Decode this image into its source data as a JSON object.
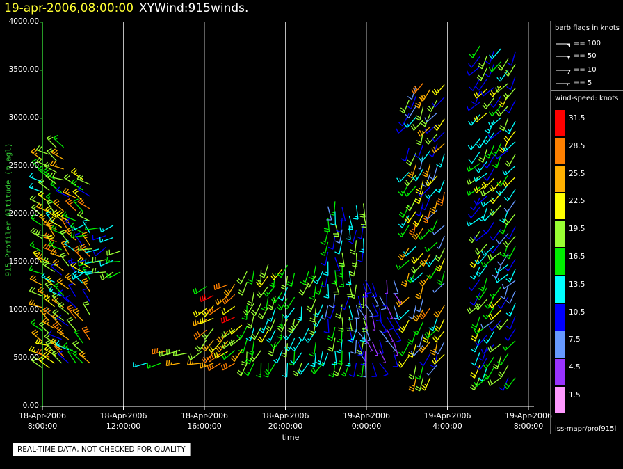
{
  "header": {
    "timestamp": "19-apr-2006,08:00:00",
    "plot_name": "XYWind:915winds."
  },
  "notice": "REAL-TIME DATA, NOT CHECKED FOR QUALITY",
  "legend": {
    "barb_title": "barb flags in knots",
    "barb_flags": [
      {
        "label": "== 100"
      },
      {
        "label": "== 50"
      },
      {
        "label": "== 10"
      },
      {
        "label": "== 5"
      }
    ],
    "speed_title": "wind-speed: knots",
    "speed_bins": [
      {
        "label": "31.5",
        "color": "#ff0000"
      },
      {
        "label": "28.5",
        "color": "#ff8000"
      },
      {
        "label": "25.5",
        "color": "#ffb000"
      },
      {
        "label": "22.5",
        "color": "#ffff00"
      },
      {
        "label": "19.5",
        "color": "#99ff33"
      },
      {
        "label": "16.5",
        "color": "#00ee00"
      },
      {
        "label": "13.5",
        "color": "#00ffff"
      },
      {
        "label": "10.5",
        "color": "#0000ff"
      },
      {
        "label": "7.5",
        "color": "#6699ff"
      },
      {
        "label": "4.5",
        "color": "#9933ff"
      },
      {
        "label": "1.5",
        "color": "#ff99ff"
      }
    ],
    "source": "iss-mapr/prof915l"
  },
  "chart_data": {
    "type": "scatter",
    "subtype": "wind-barb time-height plot",
    "xlabel": "time",
    "ylabel": "915 Profiler Altitude (m agl)",
    "x_range": [
      "2006-04-18 08:00",
      "2006-04-19 08:00"
    ],
    "ylim": [
      0,
      4000
    ],
    "y_ticks": [
      "0.00",
      "500.00",
      "1000.00",
      "1500.00",
      "2000.00",
      "2500.00",
      "3000.00",
      "3500.00",
      "4000.00"
    ],
    "x_ticks": [
      {
        "date": "18-Apr-2006",
        "time": "8:00:00"
      },
      {
        "date": "18-Apr-2006",
        "time": "12:00:00"
      },
      {
        "date": "18-Apr-2006",
        "time": "16:00:00"
      },
      {
        "date": "18-Apr-2006",
        "time": "20:00:00"
      },
      {
        "date": "19-Apr-2006",
        "time": "0:00:00"
      },
      {
        "date": "19-Apr-2006",
        "time": "4:00:00"
      },
      {
        "date": "19-Apr-2006",
        "time": "8:00:00"
      }
    ],
    "grid": "vertical lines at each time tick",
    "speed_colorbar_knots": [
      1.5,
      4.5,
      7.5,
      10.5,
      13.5,
      16.5,
      19.5,
      22.5,
      25.5,
      28.5,
      31.5
    ],
    "samples": [
      {
        "hour": 8.2,
        "alt_range": [
          400,
          2700
        ],
        "dir": 300,
        "speed_range": [
          14,
          28
        ]
      },
      {
        "hour": 9.5,
        "alt_range": [
          450,
          2400
        ],
        "dir": 310,
        "speed_range": [
          10,
          29
        ]
      },
      {
        "hour": 11.0,
        "alt_range": [
          1400,
          1900
        ],
        "dir": 250,
        "speed_range": [
          11,
          20
        ]
      },
      {
        "hour": 13.0,
        "alt_range": [
          450,
          560
        ],
        "dir": 250,
        "speed_range": [
          14,
          30
        ]
      },
      {
        "hour": 15.0,
        "alt_range": [
          450,
          600
        ],
        "dir": 250,
        "speed_range": [
          18,
          30
        ]
      },
      {
        "hour": 17.0,
        "alt_range": [
          450,
          1300
        ],
        "dir": 230,
        "speed_range": [
          17,
          31
        ]
      },
      {
        "hour": 19.0,
        "alt_range": [
          450,
          1500
        ],
        "dir": 200,
        "speed_range": [
          13,
          22
        ]
      },
      {
        "hour": 21.0,
        "alt_range": [
          450,
          1500
        ],
        "dir": 200,
        "speed_range": [
          12,
          20
        ]
      },
      {
        "hour": 23.0,
        "alt_range": [
          450,
          2200
        ],
        "dir": 180,
        "speed_range": [
          8,
          21
        ]
      },
      {
        "hour": 24.5,
        "alt_range": [
          450,
          1400
        ],
        "dir": 160,
        "speed_range": [
          3,
          12
        ]
      },
      {
        "hour": 27.0,
        "alt_range": [
          300,
          3400
        ],
        "dir": 210,
        "speed_range": [
          6,
          28
        ]
      },
      {
        "hour": 30.5,
        "alt_range": [
          300,
          3800
        ],
        "dir": 215,
        "speed_range": [
          8,
          22
        ]
      }
    ]
  }
}
